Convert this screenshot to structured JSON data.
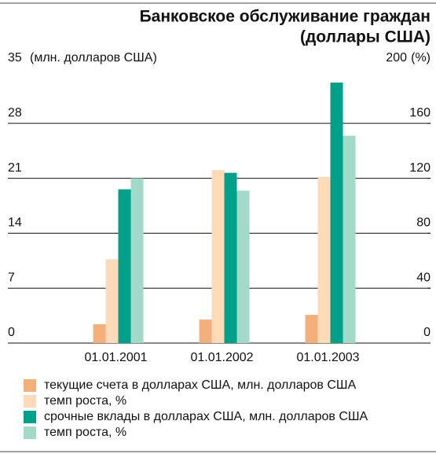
{
  "chart_data": {
    "type": "bar",
    "title": [
      "Банковское обслуживание граждан",
      "(доллары США)"
    ],
    "y_label": "(млн. долларов США)",
    "y2_label": "(%)",
    "categories": [
      "01.01.2001",
      "01.01.2002",
      "01.01.2003"
    ],
    "series": [
      {
        "name": "текущие счета в долларах США, млн. долларов США",
        "color": "#f4b07a",
        "values": [
          2.4,
          3.0,
          3.6
        ]
      },
      {
        "name": "темп роста, %",
        "color": "#fddab8",
        "axis": "y2",
        "values": [
          61,
          126,
          121
        ]
      },
      {
        "name": "срочные вклады в долларах США, млн. долларов США",
        "color": "#00a08a",
        "values": [
          19.6,
          21.7,
          33.2
        ]
      },
      {
        "name": "темп роста, %",
        "color": "#a3d9c8",
        "axis": "y2",
        "values": [
          120,
          111,
          151
        ]
      }
    ],
    "ylim": [
      0,
      35
    ],
    "yticks": [
      0,
      7,
      14,
      21,
      28,
      35
    ],
    "y2lim": [
      0,
      200
    ],
    "y2ticks": [
      0,
      40,
      80,
      120,
      160,
      200
    ],
    "grid": true
  }
}
